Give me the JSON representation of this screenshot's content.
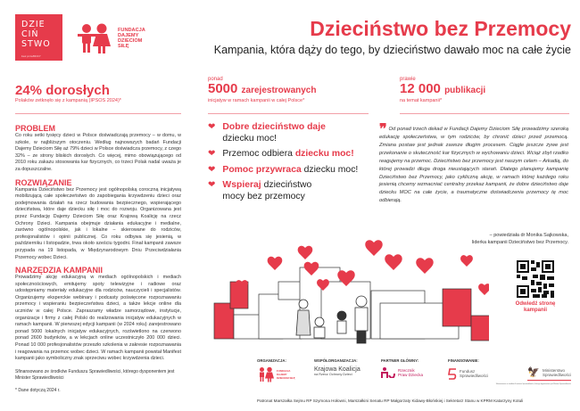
{
  "logo": {
    "lines": [
      "DZIE",
      "CIŃ",
      "STWO"
    ],
    "tag": "bez przeMOCY"
  },
  "fdds_logo": {
    "text": "FUNDACJA DAJEMY DZIECIOM SIŁĘ"
  },
  "header": {
    "title": "Dzieciństwo bez Przemocy",
    "subtitle": "Kampania, która dąży do tego, by dzieciństwo dawało moc na całe życie"
  },
  "stats": [
    {
      "pre": "",
      "value": "24% dorosłych",
      "unit": "",
      "sub": "Polaków zetknęło się z kampanią (IPSOS 2024)*"
    },
    {
      "pre": "ponad",
      "value": "5000",
      "unit": "zarejestrowanych",
      "sub": "inicjatyw w ramach kampanii w całej Polsce*"
    },
    {
      "pre": "prawie",
      "value": "12 000",
      "unit": "publikacji",
      "sub": "na temat kampanii*"
    }
  ],
  "sections": [
    {
      "heading": "PROBLEM",
      "text": "Co roku setki tysięcy dzieci w Polsce doświadczają przemocy – w domu, w szkole, w najbliższym otoczeniu. Według najnowszych badań Fundacji Dajemy Dzieciom Siłę aż 79% dzieci w Polsce doświadcza przemocy, z czego 32% – ze strony bliskich dorosłych. Co więcej, mimo obowiązującego od 2010 roku zakazu stosowania kar fizycznych, co trzeci Polak nadal uważa je za dopuszczalne."
    },
    {
      "heading": "ROZWIĄZANIE",
      "text": "Kampania Dzieciństwo bez Przemocy jest ogólnopolską coroczną inicjatywą mobilizującą całe społeczeństwo do zapobiegania krzywdzeniu dzieci oraz podejmowania działań na rzecz budowania bezpiecznego, wspierającego dzieciństwa, które daje dziecku siłę i moc do rozwoju. Organizowana jest przez Fundację Dajemy Dzieciom Siłę oraz Krajową Koalicję na rzecz Ochrony Dzieci. Kampania obejmuje działania edukacyjne i medialne, zarówno ogólnopolskie, jak i lokalne – skierowane do rodziców, profesjonalistów i opinii publicznej. Co roku odbywa się jesienią, w październiku i listopadzie, trwa około sześciu tygodni. Finał kampanii zawsze przypada na 19 listopada, w Międzynarodowym Dniu Przeciwdziałania Przemocy wobec Dzieci."
    },
    {
      "heading": "NARZĘDZIA KAMPANII",
      "text": "Prowadzimy akcję edukacyjną w mediach ogólnopolskich i mediach społecznościowych, emitujemy spoty telewizyjne i radiowe oraz udostępniamy materiały edukacyjne dla rodziców, nauczycieli i specjalistów. Organizujemy eksperckie webinary i podcasty poświęcone rozpoznawaniu przemocy i wspieraniu bezpieczeństwa dzieci, a także lekcje online dla uczniów w całej Polsce. Zapraszamy władze samorządowe, instytucje, organizacje i firmy z całej Polski do realizowania inicjatyw edukacyjnych w ramach kampanii. W pierwszej edycji kampanii (w 2024 roku) zarejestrowano ponad 5000 lokalnych inicjatyw edukacyjnych, rozświetlono na czerwono ponad 2600 budynków, a w lekcjach online uczestniczyło 200 000 dzieci. Ponad 10 000 profesjonalistów przeszło szkolenia w zakresie rozpoznawania i reagowania na przemoc wobec dzieci. W ramach kampanii powstał Manifest kampanii jako symboliczny znak sprzeciwu wobec krzywdzenia dzieci."
    }
  ],
  "funding_note": "Sfinansowano ze środków Funduszu Sprawiedliwości, którego dysponentem jest Minister Sprawiedliwości",
  "footnote": "* Dane dotyczą 2024 r.",
  "slogans": [
    {
      "bold": "Dobre dzieciństwo daje",
      "rest": "dziecku moc!",
      "bold_first": true
    },
    {
      "bold": "dziecku moc!",
      "rest": "Przemoc odbiera",
      "bold_first": false
    },
    {
      "bold": "Pomoc przywraca",
      "rest": "dziecku moc!",
      "bold_first": true
    },
    {
      "bold": "Wspieraj",
      "rest": "dzieciństwo mocy bez przemocy",
      "bold_first": true
    }
  ],
  "quote": {
    "text": "Od ponad trzech dekad w Fundacji Dajemy Dzieciom Siłę prowadzimy szeroką edukację społeczeństwa, w tym rodziców, by chronić dzieci przed przemocą. Zmiana postaw jest jednak zawsze długim procesem. Ciągle jeszcze żywe jest przekonanie o skuteczność kar fizycznych w wychowaniu dzieci. Wciąż zbyt rzadko reagujemy na przemoc. Dzieciństwo bez przemocy jest naszym celem – Arkadią, do której prowadzi długa droga nieustających starań. Dlatego planujemy kampanię Dzieciństwo bez Przemocy, jako cykliczną akcję, w ramach której każdego roku jesienią chcemy wzmacniać centralny przekaz kampanii, że dobre dzieciństwo daje dziecku MOC na całe życie, a traumatyczne doświadczenia przemocy tę moc odbierają.",
    "attribution_1": "– powiedziała dr Monika Sajkowska,",
    "attribution_2": "liderka kampanii Dzieciństwo bez Przemocy."
  },
  "qr": {
    "caption": "Odwiedź stronę kampanii"
  },
  "sponsors": {
    "organization_label": "ORGANIZACJA:",
    "organization": "FUNDACJA DAJEMY DZIECIOM SIŁĘ",
    "coorganization_label": "WSPÓŁORGANIZACJA:",
    "coorganization_1": "Krajowa Koalicja",
    "coorganization_2": "na Rzecz Ochrony Dzieci",
    "partner_label": "PARTNER GŁÓWNY:",
    "partner_1": "Rzecznik",
    "partner_2": "Praw Dziecka",
    "funding_label": "FINANSOWANIE:",
    "fund_1": "Fundusz",
    "fund_2": "Sprawiedliwości",
    "ministry_1": "Ministerstwo",
    "ministry_2": "Sprawiedliwości",
    "funding_small": "Sfinansowano ze środków Funduszu Sprawiedliwości, którego dysponentem jest Minister Sprawiedliwości"
  },
  "patronage": "Patronat Marszałka Sejmu RP Szymona Hołowni, Marszałkini Senatu RP Małgorzaty Kidawy-Błońskiej i Sekretarz Stanu w KPRM Katarzyny Kotuli",
  "colors": {
    "accent": "#e63b4b"
  }
}
